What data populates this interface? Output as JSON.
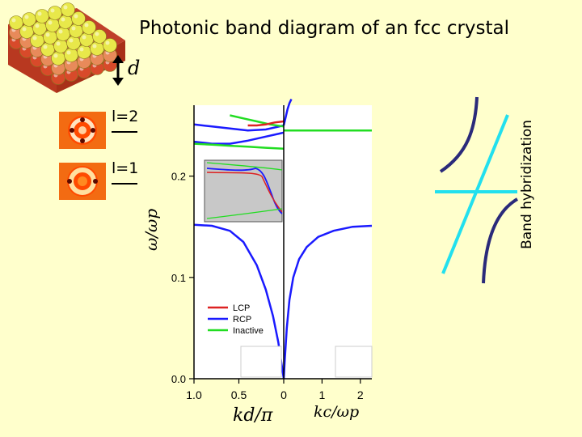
{
  "title": "Photonic band diagram of an fcc crystal",
  "side_label": "Band hybridization",
  "d_label": "d",
  "modes": [
    {
      "label": "l=2"
    },
    {
      "label": "l=1"
    }
  ],
  "colors": {
    "background": "#ffffcc",
    "lcp": "#dd2222",
    "rcp": "#1a1aff",
    "inactive": "#22dd22",
    "hybrid_dark": "#2a2a7a",
    "hybrid_light": "#22e0ee",
    "sphere_yellow": "#e8e84a",
    "sphere_red": "#d84a2a"
  },
  "chart_data": {
    "type": "line",
    "ylabel": "ω/ωp",
    "xlabel_left": "kd/π",
    "xlabel_right": "kc/ωp",
    "y_ticks": [
      "0.0",
      "0.1",
      "0.2"
    ],
    "x_ticks_left": [
      "1.0",
      "0.5",
      "0"
    ],
    "x_ticks_right": [
      "1",
      "2"
    ],
    "ylim": [
      0,
      0.27
    ],
    "legend": [
      "LCP",
      "RCP",
      "Inactive"
    ],
    "legend_position": "bottom-left",
    "left_panel": {
      "xlim": [
        1.0,
        0.0
      ],
      "series": [
        {
          "name": "RCP",
          "color": "rcp",
          "x": [
            1.0,
            0.8,
            0.6,
            0.45,
            0.3,
            0.2,
            0.12,
            0.06,
            0.02,
            0.0
          ],
          "y": [
            0.152,
            0.151,
            0.146,
            0.135,
            0.112,
            0.088,
            0.062,
            0.036,
            0.012,
            0.0
          ]
        },
        {
          "name": "RCP",
          "color": "rcp",
          "x": [
            1.0,
            0.8,
            0.6,
            0.4,
            0.2,
            0.05,
            0.0
          ],
          "y": [
            0.251,
            0.249,
            0.247,
            0.245,
            0.246,
            0.249,
            0.25
          ]
        },
        {
          "name": "RCP",
          "color": "rcp",
          "x": [
            1.0,
            0.8,
            0.6,
            0.4,
            0.2,
            0.05,
            0.0
          ],
          "y": [
            0.234,
            0.232,
            0.232,
            0.235,
            0.239,
            0.242,
            0.243
          ]
        },
        {
          "name": "Inactive",
          "color": "inactive",
          "x": [
            1.0,
            0.8,
            0.6,
            0.4,
            0.2,
            0.0
          ],
          "y": [
            0.232,
            0.231,
            0.23,
            0.229,
            0.228,
            0.227
          ]
        },
        {
          "name": "Inactive",
          "color": "inactive",
          "x": [
            0.6,
            0.45,
            0.3,
            0.15,
            0.0
          ],
          "y": [
            0.26,
            0.257,
            0.254,
            0.251,
            0.249
          ]
        },
        {
          "name": "LCP",
          "color": "lcp",
          "x": [
            0.4,
            0.3,
            0.2,
            0.1,
            0.0
          ],
          "y": [
            0.25,
            0.25,
            0.251,
            0.253,
            0.254
          ]
        }
      ]
    },
    "right_panel": {
      "xlim": [
        0,
        2.3
      ],
      "series": [
        {
          "name": "RCP",
          "color": "rcp",
          "x": [
            0.0,
            0.03,
            0.08,
            0.15,
            0.25,
            0.4,
            0.6,
            0.9,
            1.3,
            1.8,
            2.3
          ],
          "y": [
            0.0,
            0.02,
            0.05,
            0.078,
            0.1,
            0.118,
            0.13,
            0.14,
            0.146,
            0.15,
            0.151
          ]
        },
        {
          "name": "Inactive",
          "color": "inactive",
          "x": [
            0.0,
            0.5,
            1.0,
            1.5,
            2.0,
            2.3
          ],
          "y": [
            0.245,
            0.245,
            0.245,
            0.245,
            0.245,
            0.245
          ]
        },
        {
          "name": "RCP",
          "color": "rcp",
          "x": [
            0.0,
            0.05,
            0.1,
            0.15,
            0.2
          ],
          "y": [
            0.25,
            0.258,
            0.266,
            0.272,
            0.276
          ]
        }
      ]
    }
  }
}
